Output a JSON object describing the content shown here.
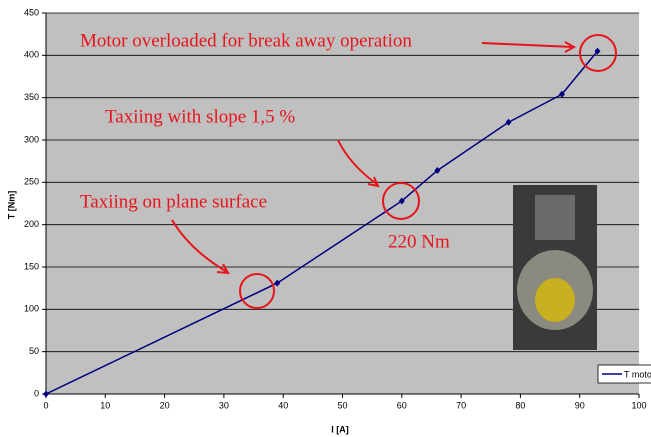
{
  "chart_data": {
    "type": "line",
    "x_label": "I [A]",
    "y_label": "T [Nm]",
    "x": [
      0,
      39,
      60,
      66,
      78,
      87,
      93
    ],
    "series": [
      {
        "name": "T moto",
        "color": "#000080",
        "values": [
          0,
          131,
          228,
          264,
          321,
          354,
          405
        ]
      }
    ],
    "xlim": [
      0,
      100
    ],
    "xticks": [
      0,
      10,
      20,
      30,
      40,
      50,
      60,
      70,
      80,
      90,
      100
    ],
    "ylim": [
      0,
      450
    ],
    "yticks": [
      0,
      50,
      100,
      150,
      200,
      250,
      300,
      350,
      400,
      450
    ],
    "grid": true,
    "annotations": [
      "Motor overloaded for break away operation",
      "Taxiing with slope 1,5 %",
      "Taxiing on plane surface",
      "220 Nm"
    ]
  }
}
